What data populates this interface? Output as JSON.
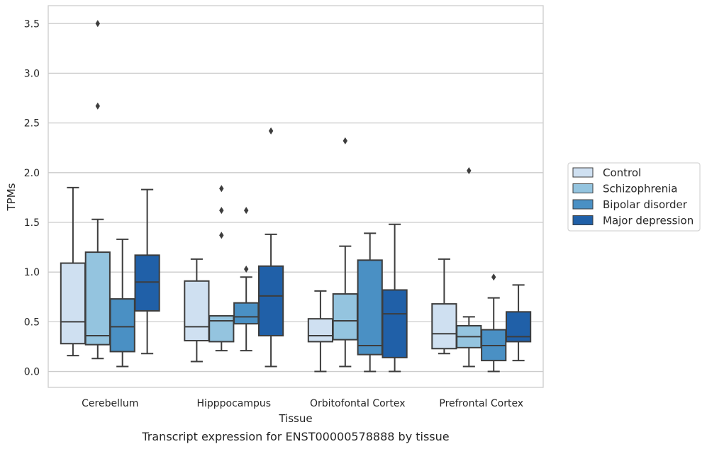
{
  "caption": "Transcript expression for ENST00000578888 by tissue",
  "chart_data": {
    "type": "box",
    "title": "",
    "xlabel": "Tissue",
    "ylabel": "TPMs",
    "ylim": [
      -0.16,
      3.68
    ],
    "yticks": [
      0.0,
      0.5,
      1.0,
      1.5,
      2.0,
      2.5,
      3.0,
      3.5
    ],
    "ytick_labels": [
      "0.0",
      "0.5",
      "1.0",
      "1.5",
      "2.0",
      "2.5",
      "3.0",
      "3.5"
    ],
    "grid": "horizontal",
    "legend_position": "right",
    "categories": [
      "Cerebellum",
      "Hipppocampus",
      "Orbitofontal Cortex",
      "Prefrontal Cortex"
    ],
    "series": [
      {
        "name": "Control",
        "color": "#cfe0f1",
        "boxes": [
          {
            "whisker_low": 0.16,
            "q1": 0.28,
            "median": 0.5,
            "q3": 1.09,
            "whisker_high": 1.85,
            "outliers": []
          },
          {
            "whisker_low": 0.1,
            "q1": 0.31,
            "median": 0.45,
            "q3": 0.91,
            "whisker_high": 1.13,
            "outliers": []
          },
          {
            "whisker_low": 0.0,
            "q1": 0.3,
            "median": 0.36,
            "q3": 0.53,
            "whisker_high": 0.81,
            "outliers": []
          },
          {
            "whisker_low": 0.18,
            "q1": 0.23,
            "median": 0.38,
            "q3": 0.68,
            "whisker_high": 1.13,
            "outliers": []
          }
        ]
      },
      {
        "name": "Schizophrenia",
        "color": "#94c4df",
        "boxes": [
          {
            "whisker_low": 0.13,
            "q1": 0.27,
            "median": 0.36,
            "q3": 1.2,
            "whisker_high": 1.53,
            "outliers": [
              2.67,
              3.5
            ]
          },
          {
            "whisker_low": 0.21,
            "q1": 0.3,
            "median": 0.51,
            "q3": 0.56,
            "whisker_high": 0.56,
            "outliers": [
              1.37,
              1.62,
              1.84
            ]
          },
          {
            "whisker_low": 0.05,
            "q1": 0.32,
            "median": 0.51,
            "q3": 0.78,
            "whisker_high": 1.26,
            "outliers": [
              2.32
            ]
          },
          {
            "whisker_low": 0.05,
            "q1": 0.24,
            "median": 0.35,
            "q3": 0.46,
            "whisker_high": 0.55,
            "outliers": [
              2.02
            ]
          }
        ]
      },
      {
        "name": "Bipolar disorder",
        "color": "#4a90c4",
        "boxes": [
          {
            "whisker_low": 0.05,
            "q1": 0.2,
            "median": 0.45,
            "q3": 0.73,
            "whisker_high": 1.33,
            "outliers": []
          },
          {
            "whisker_low": 0.21,
            "q1": 0.48,
            "median": 0.55,
            "q3": 0.69,
            "whisker_high": 0.95,
            "outliers": [
              1.03,
              1.62
            ]
          },
          {
            "whisker_low": 0.0,
            "q1": 0.17,
            "median": 0.26,
            "q3": 1.12,
            "whisker_high": 1.39,
            "outliers": []
          },
          {
            "whisker_low": 0.0,
            "q1": 0.11,
            "median": 0.26,
            "q3": 0.42,
            "whisker_high": 0.74,
            "outliers": [
              0.95
            ]
          }
        ]
      },
      {
        "name": "Major depression",
        "color": "#2060a8",
        "boxes": [
          {
            "whisker_low": 0.18,
            "q1": 0.61,
            "median": 0.9,
            "q3": 1.17,
            "whisker_high": 1.83,
            "outliers": []
          },
          {
            "whisker_low": 0.05,
            "q1": 0.36,
            "median": 0.76,
            "q3": 1.06,
            "whisker_high": 1.38,
            "outliers": [
              2.42
            ]
          },
          {
            "whisker_low": 0.0,
            "q1": 0.14,
            "median": 0.58,
            "q3": 0.82,
            "whisker_high": 1.48,
            "outliers": []
          },
          {
            "whisker_low": 0.11,
            "q1": 0.3,
            "median": 0.35,
            "q3": 0.6,
            "whisker_high": 0.87,
            "outliers": []
          }
        ]
      }
    ]
  }
}
